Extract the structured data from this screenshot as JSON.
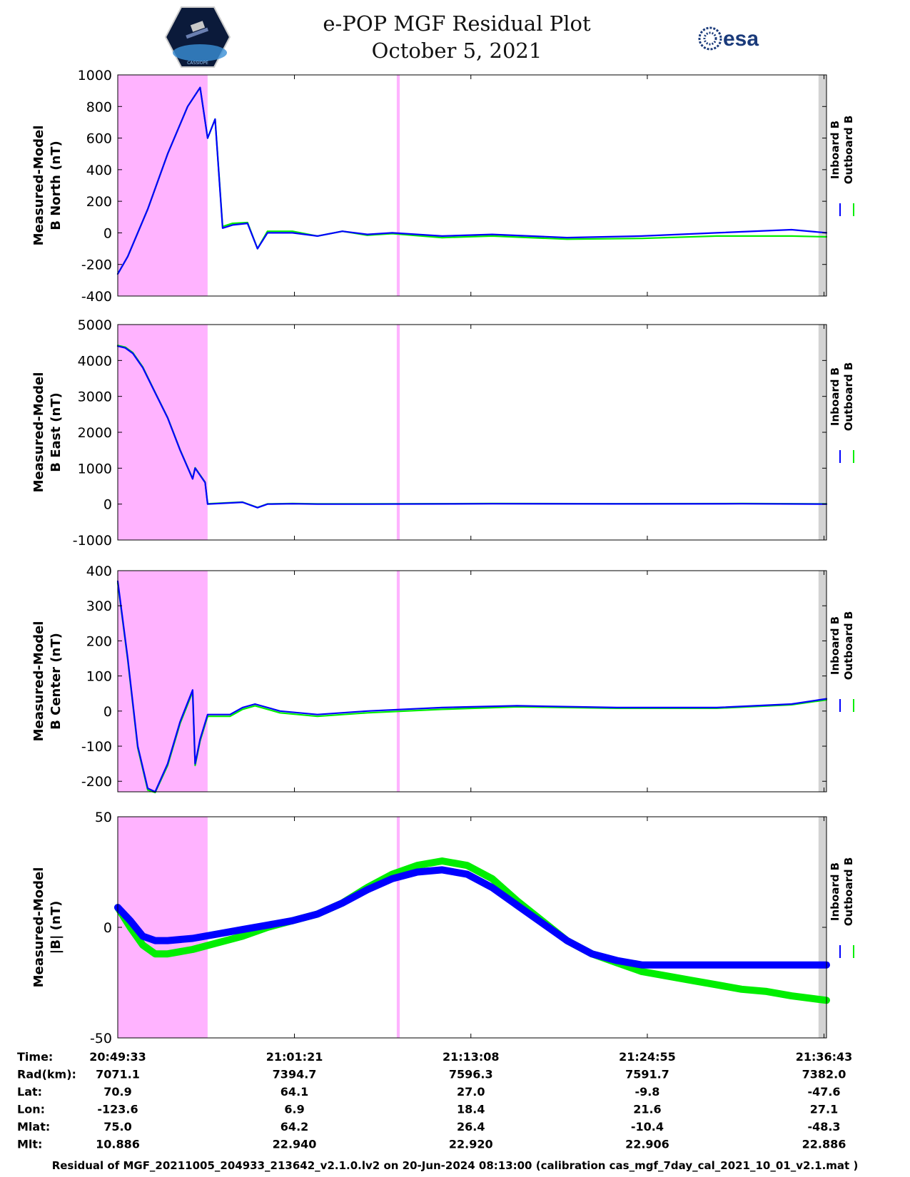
{
  "title": {
    "line1": "e-POP MGF Residual Plot",
    "line2": "October 5, 2021"
  },
  "logos": {
    "left": "CASSIOPE",
    "right": "esa"
  },
  "colors": {
    "inboard": "#0000ff",
    "outboard": "#00ee00",
    "shade_magenta": "#ffb3ff",
    "shade_gray": "#d3d3d3"
  },
  "legend": {
    "inboard": "Inboard B",
    "outboard": "Outboard B"
  },
  "chart_data": [
    {
      "type": "line",
      "ylabel": [
        "Measured-Model",
        "B North (nT)"
      ],
      "ylim": [
        -400,
        1000
      ],
      "yticks": [
        "1000",
        "800",
        "600",
        "400",
        "200",
        "0",
        "-200",
        "-400"
      ],
      "ytick_values": [
        1000,
        800,
        600,
        400,
        200,
        0,
        -200,
        -400
      ],
      "x_unit": "seconds after 20:49:33",
      "series": [
        {
          "name": "Inboard B",
          "x": [
            0,
            40,
            120,
            200,
            280,
            330,
            360,
            390,
            420,
            460,
            520,
            560,
            600,
            700,
            800,
            900,
            1000,
            1100,
            1300,
            1500,
            1800,
            2100,
            2400,
            2700,
            2840
          ],
          "y": [
            -260,
            -150,
            150,
            500,
            800,
            920,
            600,
            720,
            30,
            50,
            60,
            -100,
            0,
            0,
            -20,
            10,
            -10,
            0,
            -20,
            -10,
            -30,
            -20,
            0,
            20,
            0
          ]
        },
        {
          "name": "Outboard B",
          "x": [
            0,
            40,
            120,
            200,
            280,
            330,
            360,
            390,
            420,
            460,
            520,
            560,
            600,
            700,
            800,
            900,
            1000,
            1100,
            1300,
            1500,
            1800,
            2100,
            2400,
            2700,
            2840
          ],
          "y": [
            -260,
            -150,
            150,
            500,
            800,
            920,
            600,
            720,
            40,
            60,
            65,
            -100,
            10,
            10,
            -20,
            10,
            -15,
            -5,
            -30,
            -20,
            -40,
            -35,
            -20,
            -20,
            -25
          ]
        }
      ]
    },
    {
      "type": "line",
      "ylabel": [
        "Measured-Model",
        "B East (nT)"
      ],
      "ylim": [
        -1000,
        5000
      ],
      "yticks": [
        "5000",
        "4000",
        "3000",
        "2000",
        "1000",
        "0",
        "-1000"
      ],
      "ytick_values": [
        5000,
        4000,
        3000,
        2000,
        1000,
        0,
        -1000
      ],
      "x_unit": "seconds after 20:49:33",
      "series": [
        {
          "name": "Inboard B",
          "x": [
            0,
            30,
            60,
            100,
            150,
            200,
            250,
            300,
            310,
            350,
            360,
            500,
            560,
            600,
            700,
            800,
            1000,
            1500,
            2000,
            2500,
            2840
          ],
          "y": [
            4400,
            4350,
            4200,
            3800,
            3100,
            2400,
            1500,
            700,
            1000,
            600,
            0,
            50,
            -100,
            0,
            10,
            0,
            0,
            10,
            5,
            10,
            0
          ]
        },
        {
          "name": "Outboard B",
          "x": [
            0,
            30,
            60,
            100,
            150,
            200,
            250,
            300,
            310,
            350,
            360,
            500,
            560,
            600,
            700,
            800,
            1000,
            1500,
            2000,
            2500,
            2840
          ],
          "y": [
            4420,
            4370,
            4220,
            3820,
            3110,
            2410,
            1510,
            710,
            1010,
            610,
            10,
            55,
            -95,
            5,
            15,
            5,
            5,
            15,
            10,
            15,
            5
          ]
        }
      ]
    },
    {
      "type": "line",
      "ylabel": [
        "Measured-Model",
        "B Center (nT)"
      ],
      "ylim": [
        -230,
        400
      ],
      "yticks": [
        "400",
        "300",
        "200",
        "100",
        "0",
        "-100",
        "-200"
      ],
      "ytick_values": [
        400,
        300,
        200,
        100,
        0,
        -100,
        -200
      ],
      "x_unit": "seconds after 20:49:33",
      "series": [
        {
          "name": "Inboard B",
          "x": [
            0,
            40,
            80,
            120,
            150,
            200,
            250,
            300,
            310,
            330,
            360,
            450,
            500,
            550,
            650,
            800,
            1000,
            1300,
            1600,
            2000,
            2400,
            2700,
            2840
          ],
          "y": [
            370,
            150,
            -100,
            -220,
            -230,
            -150,
            -30,
            60,
            -150,
            -80,
            -10,
            -10,
            10,
            20,
            0,
            -10,
            0,
            10,
            15,
            10,
            10,
            20,
            35
          ]
        },
        {
          "name": "Outboard B",
          "x": [
            0,
            40,
            80,
            120,
            150,
            200,
            250,
            300,
            310,
            330,
            360,
            450,
            500,
            550,
            650,
            800,
            1000,
            1300,
            1600,
            2000,
            2400,
            2700,
            2840
          ],
          "y": [
            365,
            145,
            -105,
            -225,
            -232,
            -155,
            -35,
            55,
            -155,
            -85,
            -15,
            -15,
            5,
            15,
            -5,
            -15,
            -5,
            5,
            12,
            8,
            8,
            18,
            32
          ]
        }
      ]
    },
    {
      "type": "line",
      "ylabel": [
        "Measured-Model",
        "|B| (nT)"
      ],
      "ylim": [
        -50,
        50
      ],
      "yticks": [
        "50",
        "0",
        "-50"
      ],
      "ytick_values": [
        50,
        0,
        -50
      ],
      "x_unit": "seconds after 20:49:33",
      "series": [
        {
          "name": "Inboard B",
          "x": [
            0,
            50,
            100,
            150,
            200,
            300,
            400,
            500,
            600,
            700,
            800,
            900,
            1000,
            1100,
            1200,
            1300,
            1400,
            1500,
            1600,
            1700,
            1800,
            1900,
            2000,
            2100,
            2200,
            2300,
            2400,
            2500,
            2600,
            2700,
            2840
          ],
          "y": [
            9,
            3,
            -4,
            -6,
            -6,
            -5,
            -3,
            -1,
            1,
            3,
            6,
            11,
            17,
            22,
            25,
            26,
            24,
            18,
            10,
            2,
            -6,
            -12,
            -15,
            -17,
            -17,
            -17,
            -17,
            -17,
            -17,
            -17,
            -17
          ]
        },
        {
          "name": "Outboard B",
          "x": [
            0,
            50,
            100,
            150,
            200,
            300,
            400,
            500,
            600,
            700,
            800,
            900,
            1000,
            1100,
            1200,
            1300,
            1400,
            1500,
            1600,
            1700,
            1800,
            1900,
            2000,
            2100,
            2200,
            2300,
            2400,
            2500,
            2600,
            2700,
            2840
          ],
          "y": [
            9,
            0,
            -8,
            -12,
            -12,
            -10,
            -7,
            -4,
            0,
            3,
            6,
            11,
            18,
            24,
            28,
            30,
            28,
            22,
            12,
            3,
            -6,
            -12,
            -16,
            -20,
            -22,
            -24,
            -26,
            -28,
            -29,
            -31,
            -33
          ]
        }
      ]
    }
  ],
  "x_ticks": [
    {
      "t": 0,
      "label": "20:49:33"
    },
    {
      "t": 708,
      "label": "21:01:21"
    },
    {
      "t": 1415,
      "label": "21:13:08"
    },
    {
      "t": 2122,
      "label": "21:24:55"
    },
    {
      "t": 2830,
      "label": "21:36:43"
    }
  ],
  "x_range": [
    0,
    2840
  ],
  "shaded_intervals": {
    "magenta": [
      [
        0,
        360
      ],
      [
        1118,
        1130
      ]
    ],
    "gray": [
      [
        2808,
        2840
      ]
    ]
  },
  "orbit_table": {
    "row_labels": [
      "Time:",
      "Rad(km):",
      "Lat:",
      "Lon:",
      "Mlat:",
      "Mlt:"
    ],
    "columns": [
      [
        "20:49:33",
        "7071.1",
        "70.9",
        "-123.6",
        "75.0",
        "10.886"
      ],
      [
        "21:01:21",
        "7394.7",
        "64.1",
        "6.9",
        "64.2",
        "22.940"
      ],
      [
        "21:13:08",
        "7596.3",
        "27.0",
        "18.4",
        "26.4",
        "22.920"
      ],
      [
        "21:24:55",
        "7591.7",
        "-9.8",
        "21.6",
        "-10.4",
        "22.906"
      ],
      [
        "21:36:43",
        "7382.0",
        "-47.6",
        "27.1",
        "-48.3",
        "22.886"
      ]
    ]
  },
  "footer": "Residual of MGF_20211005_204933_213642_v2.1.0.lv2 on 20-Jun-2024 08:13:00 (calibration cas_mgf_7day_cal_2021_10_01_v2.1.mat )"
}
